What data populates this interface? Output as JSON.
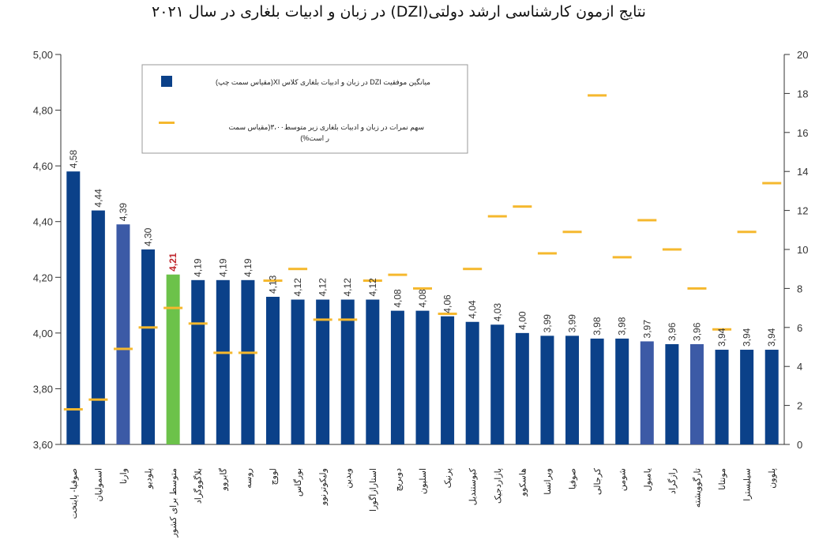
{
  "chart_data": {
    "type": "bar",
    "title": "نتایج ازمون کارشناسی ارشد دولتی(DZI) در زبان و ادبیات بلغاری در سال ۲۰۲۱",
    "categories": [
      "صوفیا- پایتخت",
      "اسمولیان",
      "وارنا",
      "پلودیو",
      "متوسط برای کشور",
      "بلاگووگراد",
      "گابروو",
      "روسه",
      "لووچ",
      "بورگاس",
      "ولیکوترنوو",
      "ویدین",
      "استارازاگورا",
      "دوبریچ",
      "اسلیون",
      "پرنیک",
      "کیوستندیل",
      "پازاردجیک",
      "هاسکوو",
      "ویراتسا",
      "صوفیا",
      "کرجالی",
      "شومن",
      "یامبول",
      "رازگراد",
      "تارگوویشته",
      "مونتانا",
      "سیلیسترا",
      "پلوون"
    ],
    "series": [
      {
        "name": "میانگین موفقیت DZI در زبان و ادبیات بلغاری کلاس XI(مقیاس سمت چپ)",
        "axis": "left",
        "values": [
          4.58,
          4.44,
          4.39,
          4.3,
          4.21,
          4.19,
          4.19,
          4.19,
          4.13,
          4.12,
          4.12,
          4.12,
          4.12,
          4.08,
          4.08,
          4.06,
          4.04,
          4.03,
          4.0,
          3.99,
          3.99,
          3.98,
          3.98,
          3.97,
          3.96,
          3.96,
          3.94,
          3.94,
          3.94
        ],
        "labels": [
          "4,58",
          "4,44",
          "4,39",
          "4,30",
          "4,21",
          "4,19",
          "4,19",
          "4,19",
          "4,13",
          "4,12",
          "4,12",
          "4,12",
          "4,12",
          "4,08",
          "4,08",
          "4,06",
          "4,04",
          "4,03",
          "4,00",
          "3,99",
          "3,99",
          "3,98",
          "3,98",
          "3,97",
          "3,96",
          "3,96",
          "3,94",
          "3,94",
          "3,94"
        ],
        "bar_colors": [
          "#0b4189",
          "#0b4189",
          "#3c5aa6",
          "#0b4189",
          "#6cc24a",
          "#0b4189",
          "#0b4189",
          "#0b4189",
          "#0b4189",
          "#0b4189",
          "#0b4189",
          "#0b4189",
          "#0b4189",
          "#0b4189",
          "#0b4189",
          "#0b4189",
          "#0b4189",
          "#0b4189",
          "#0b4189",
          "#0b4189",
          "#0b4189",
          "#0b4189",
          "#0b4189",
          "#3c5aa6",
          "#0b4189",
          "#3c5aa6",
          "#0b4189",
          "#0b4189",
          "#0b4189"
        ],
        "highlight_index": 4,
        "highlight_label_color": "#c0272d"
      },
      {
        "name": "سهم نمرات در زبان و ادبیات بلغاری زیر متوسط۳،۰۰(مقیاس سمت راست%)",
        "axis": "right",
        "values": [
          1.8,
          2.3,
          4.9,
          6.0,
          7.0,
          6.2,
          4.7,
          4.7,
          8.4,
          9.0,
          6.4,
          6.4,
          8.4,
          8.7,
          8.0,
          6.7,
          9.0,
          11.7,
          12.2,
          9.8,
          10.9,
          17.9,
          9.6,
          11.5,
          10.0,
          8.0,
          5.9,
          10.9,
          13.4
        ],
        "color": "#f5b82e"
      }
    ],
    "yaxis_left": {
      "min": 3.6,
      "max": 5.0,
      "ticks": [
        "3,60",
        "3,80",
        "4,00",
        "4,20",
        "4,40",
        "4,60",
        "4,80",
        "5,00"
      ]
    },
    "yaxis_right": {
      "min": 0,
      "max": 20,
      "ticks": [
        "0",
        "2",
        "4",
        "6",
        "8",
        "10",
        "12",
        "14",
        "16",
        "18",
        "20"
      ]
    },
    "legend": {
      "position": "top-left",
      "items": [
        {
          "text": "میانگین موفقیت DZI در زبان و ادبیات بلغاری کلاس XI(مقیاس سمت چپ)"
        },
        {
          "text": "سهم نمرات در زبان و ادبیات بلغاری زیر متوسط۳،۰۰(مقیاس سمت",
          "text2": "ر است%)"
        }
      ]
    },
    "grid": false
  }
}
